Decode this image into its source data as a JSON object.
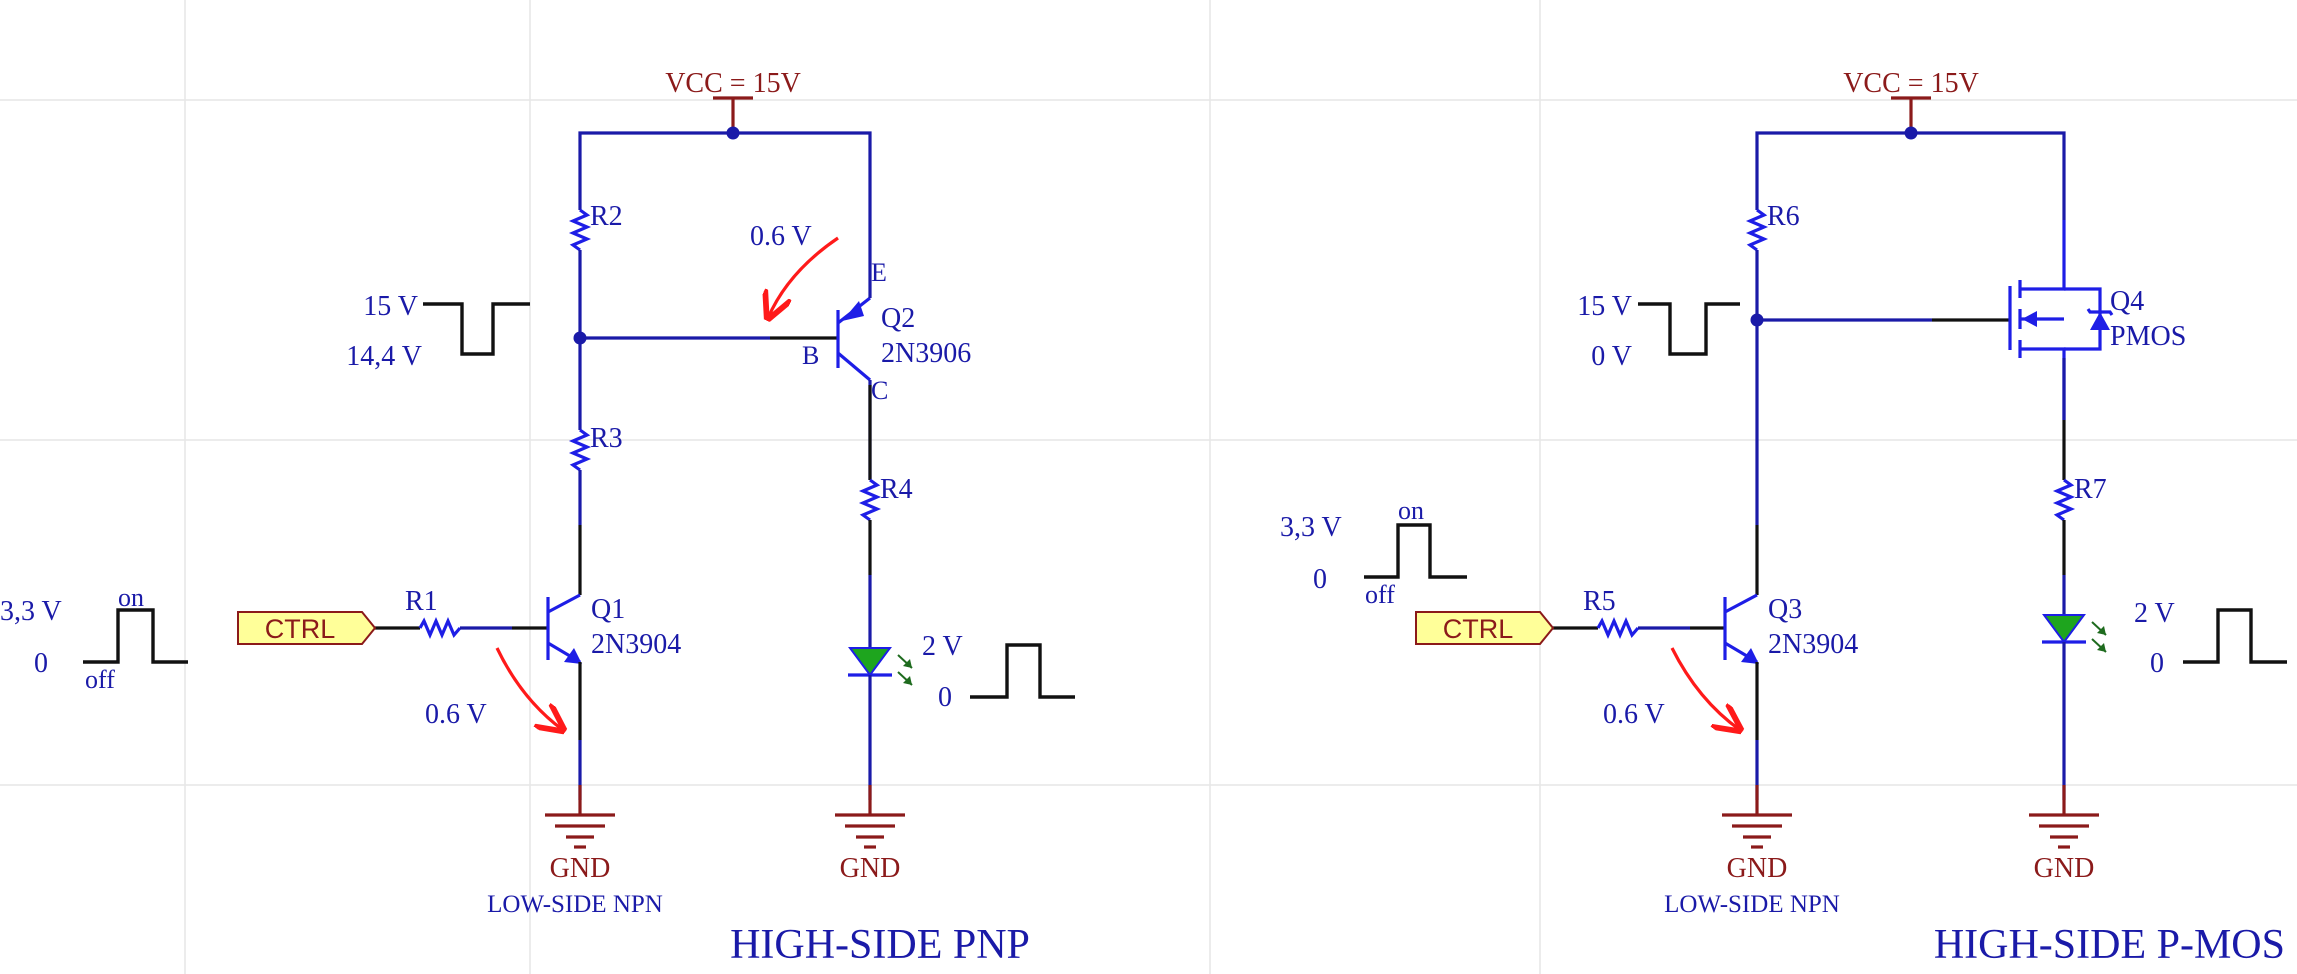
{
  "colors": {
    "wire": "#1a1aa8",
    "component": "#1e1ee6",
    "power": "#8b1a1a",
    "arrow": "#ff1a1a",
    "signal": "#111111",
    "port_fill": "#ffff99",
    "led_fill": "#1ea51e"
  },
  "pnp": {
    "title": "HIGH-SIDE PNP",
    "vcc": "VCC = 15V",
    "gnd1": "GND",
    "gnd2": "GND",
    "low_side": "LOW-SIDE NPN",
    "ctrl": "CTRL",
    "r1": "R1",
    "r2": "R2",
    "r3": "R3",
    "r4": "R4",
    "q1": "Q1",
    "q1_part": "2N3904",
    "q2": "Q2",
    "q2_part": "2N3906",
    "pin_e": "E",
    "pin_b": "B",
    "pin_c": "C",
    "vbe_q2": "0.6 V",
    "vbe_q1": "0.6 V",
    "in_high": "3,3 V",
    "in_low": "0",
    "in_on": "on",
    "in_off": "off",
    "base_high": "15 V",
    "base_low": "14,4 V",
    "led_high": "2 V",
    "led_low": "0"
  },
  "pmos": {
    "title": "HIGH-SIDE P-MOS",
    "vcc": "VCC = 15V",
    "gnd1": "GND",
    "gnd2": "GND",
    "low_side": "LOW-SIDE NPN",
    "ctrl": "CTRL",
    "r5": "R5",
    "r6": "R6",
    "r7": "R7",
    "q3": "Q3",
    "q3_part": "2N3904",
    "q4": "Q4",
    "q4_part": "PMOS",
    "vbe_q3": "0.6 V",
    "in_high": "3,3 V",
    "in_low": "0",
    "in_on": "on",
    "in_off": "off",
    "gate_high": "15 V",
    "gate_low": "0 V",
    "led_high": "2 V",
    "led_low": "0"
  }
}
